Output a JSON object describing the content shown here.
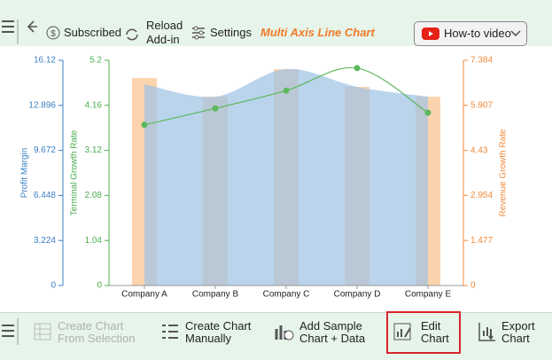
{
  "toolbar": {
    "subscribed": "Subscribed",
    "reload": [
      "Reload",
      "Add-in"
    ],
    "settings": "Settings",
    "title": "Multi Axis Line Chart",
    "video": "How-to video"
  },
  "chart_data": {
    "type": "combo",
    "categories": [
      "Company A",
      "Company B",
      "Company C",
      "Company D",
      "Company E"
    ],
    "ylabel": "Terminal Growth Rate",
    "ylim": [
      0,
      5.2
    ],
    "yticks": [
      0,
      1.04,
      2.08,
      3.12,
      4.16,
      5.2
    ],
    "ycolor": "#4caf50",
    "y2label": "Revenue Growth Rate",
    "y2lim": [
      0,
      7.384
    ],
    "y2ticks": [
      0,
      1.477,
      2.954,
      4.43,
      5.907,
      7.384
    ],
    "y2color": "#f08a3c",
    "y3label": "Profit Margin",
    "y3lim": [
      0,
      16.12
    ],
    "y3ticks": [
      0,
      3.224,
      6.448,
      9.672,
      12.896,
      16.12
    ],
    "y3color": "#3a7fc4",
    "series": [
      {
        "type": "bar",
        "axis": "y2",
        "color": "#fdd3ad",
        "values": [
          6.8,
          6.19,
          7.09,
          6.51,
          6.19
        ]
      },
      {
        "type": "area",
        "axis": "y3",
        "color": "#9fc3e4",
        "values": [
          14.41,
          13.52,
          15.49,
          14.22,
          13.52
        ]
      },
      {
        "type": "line",
        "axis": "y",
        "color": "#5cb85c",
        "values": [
          3.71,
          4.09,
          4.5,
          5.02,
          3.99
        ]
      }
    ]
  },
  "bottombar": {
    "from_selection": [
      "Create Chart",
      "From Selection"
    ],
    "manually": [
      "Create Chart",
      "Manually"
    ],
    "sample": [
      "Add Sample",
      "Chart + Data"
    ],
    "edit": [
      "Edit",
      "Chart"
    ],
    "export": [
      "Export",
      "Chart"
    ]
  }
}
